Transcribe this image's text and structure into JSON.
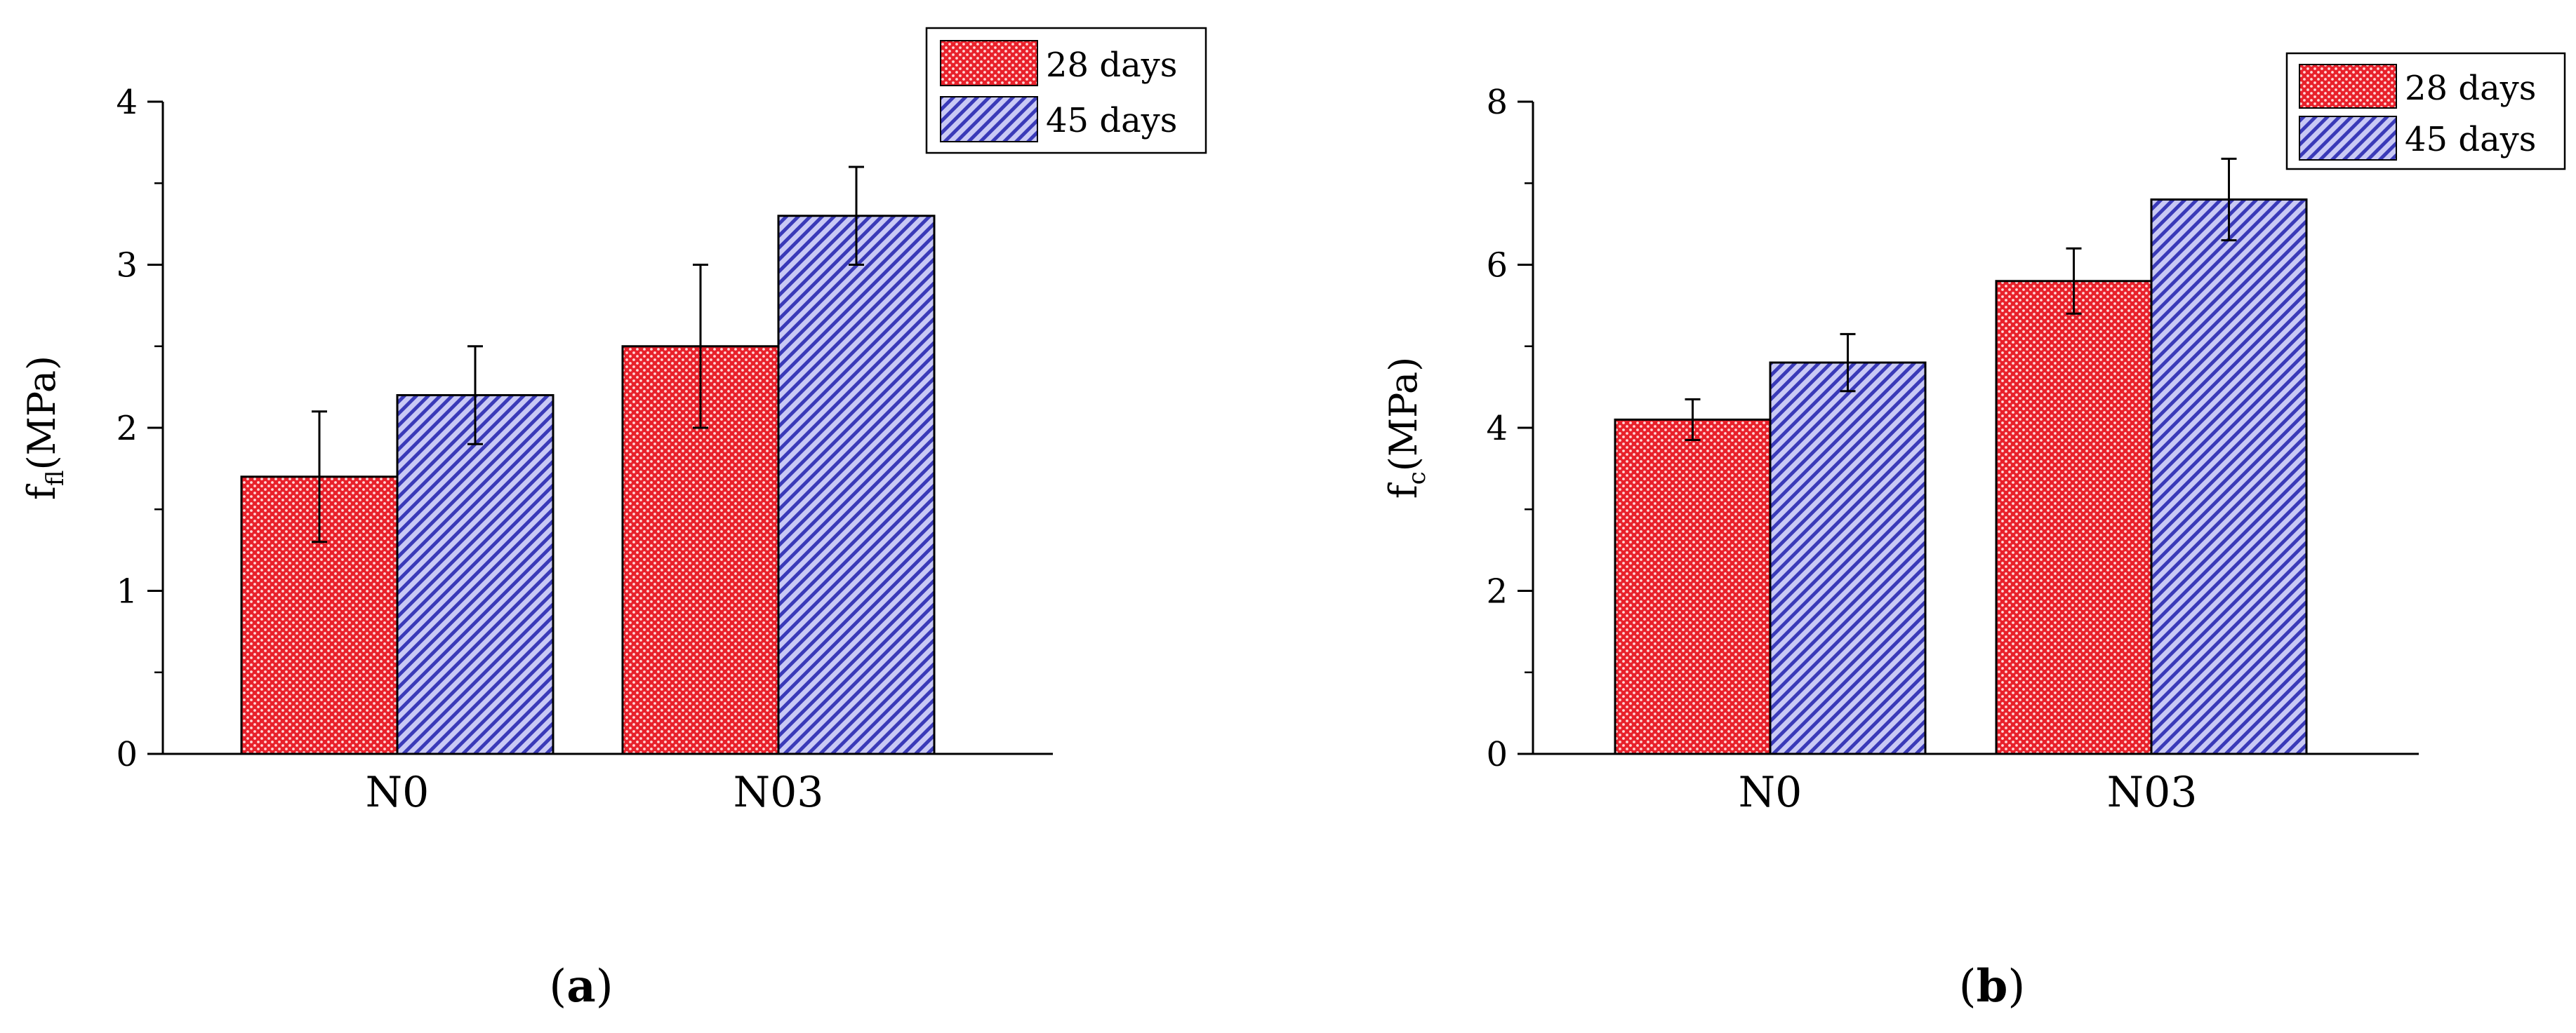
{
  "chart_data": [
    {
      "type": "bar",
      "panel_label": "a",
      "categories": [
        "N0",
        "N03"
      ],
      "series": [
        {
          "name": "28 days",
          "values": [
            1.7,
            2.5
          ],
          "errors": [
            0.4,
            0.5
          ]
        },
        {
          "name": "45 days",
          "values": [
            2.2,
            3.3
          ],
          "errors": [
            0.3,
            0.3
          ]
        }
      ],
      "ylabel_main": "f",
      "ylabel_sub": "fl",
      "ylabel_unit": "(MPa)",
      "ylim": [
        0,
        4
      ],
      "yticks": [
        "0",
        "1",
        "2",
        "3",
        "4"
      ],
      "legend": [
        "28 days",
        "45 days"
      ]
    },
    {
      "type": "bar",
      "panel_label": "b",
      "categories": [
        "N0",
        "N03"
      ],
      "series": [
        {
          "name": "28 days",
          "values": [
            4.1,
            5.8
          ],
          "errors": [
            0.25,
            0.4
          ]
        },
        {
          "name": "45 days",
          "values": [
            4.8,
            6.8
          ],
          "errors": [
            0.35,
            0.5
          ]
        }
      ],
      "ylabel_main": "f",
      "ylabel_sub": "c",
      "ylabel_unit": "(MPa)",
      "ylim": [
        0,
        8
      ],
      "yticks": [
        "0",
        "2",
        "4",
        "6",
        "8"
      ],
      "legend": [
        "28 days",
        "45 days"
      ]
    }
  ],
  "colors": {
    "red_fill": "#e8212b",
    "red_dot": "#ffd7d7",
    "blue_fill": "#c9c9f5",
    "blue_stripe": "#3a3ab8"
  }
}
